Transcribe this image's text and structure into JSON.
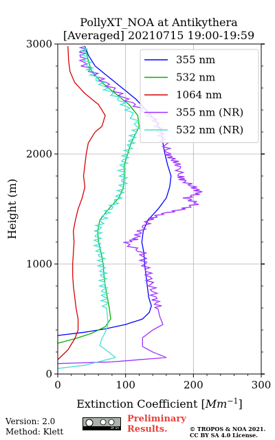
{
  "chart_data": {
    "type": "line",
    "title": "PollyXT_NOA at Antikythera",
    "subtitle": "[Averaged] 20210715 19:00-19:59",
    "xlabel": "Extinction Coefficient [Mm⁻¹]",
    "xlabel_main": "Extinction Coefficient [",
    "xlabel_unit": "Mm",
    "xlabel_exp": "−1",
    "xlabel_close": "]",
    "ylabel": "Height (m)",
    "xlim": [
      0,
      300
    ],
    "ylim": [
      0,
      3000
    ],
    "xticks": [
      "0",
      "100",
      "200",
      "300"
    ],
    "yticks": [
      "0",
      "1000",
      "2000",
      "3000"
    ],
    "grid": true,
    "legend_position": "top-right",
    "series": [
      {
        "name": "355 nm",
        "color": "#0000ff",
        "points": [
          [
            0,
            350
          ],
          [
            40,
            380
          ],
          [
            70,
            410
          ],
          [
            100,
            450
          ],
          [
            125,
            500
          ],
          [
            135,
            560
          ],
          [
            138,
            620
          ],
          [
            134,
            700
          ],
          [
            132,
            800
          ],
          [
            130,
            900
          ],
          [
            128,
            1000
          ],
          [
            127,
            1100
          ],
          [
            124,
            1200
          ],
          [
            126,
            1300
          ],
          [
            133,
            1400
          ],
          [
            148,
            1500
          ],
          [
            160,
            1600
          ],
          [
            165,
            1700
          ],
          [
            167,
            1800
          ],
          [
            162,
            1900
          ],
          [
            158,
            2000
          ],
          [
            155,
            2100
          ],
          [
            153,
            2200
          ],
          [
            145,
            2300
          ],
          [
            130,
            2400
          ],
          [
            115,
            2500
          ],
          [
            95,
            2600
          ],
          [
            75,
            2700
          ],
          [
            55,
            2800
          ],
          [
            45,
            2900
          ],
          [
            40,
            2980
          ]
        ]
      },
      {
        "name": "532 nm",
        "color": "#00b000",
        "points": [
          [
            0,
            280
          ],
          [
            25,
            320
          ],
          [
            50,
            370
          ],
          [
            70,
            430
          ],
          [
            78,
            500
          ],
          [
            76,
            600
          ],
          [
            73,
            700
          ],
          [
            70,
            800
          ],
          [
            68,
            900
          ],
          [
            67,
            1000
          ],
          [
            64,
            1100
          ],
          [
            60,
            1200
          ],
          [
            59,
            1300
          ],
          [
            62,
            1400
          ],
          [
            75,
            1500
          ],
          [
            90,
            1600
          ],
          [
            97,
            1700
          ],
          [
            98,
            1800
          ],
          [
            98,
            1900
          ],
          [
            103,
            2000
          ],
          [
            108,
            2100
          ],
          [
            112,
            2150
          ],
          [
            120,
            2250
          ],
          [
            118,
            2350
          ],
          [
            105,
            2450
          ],
          [
            85,
            2550
          ],
          [
            65,
            2650
          ],
          [
            50,
            2750
          ],
          [
            45,
            2850
          ],
          [
            40,
            2980
          ]
        ]
      },
      {
        "name": "1064 nm",
        "color": "#d40000",
        "points": [
          [
            0,
            130
          ],
          [
            15,
            220
          ],
          [
            25,
            320
          ],
          [
            30,
            400
          ],
          [
            30,
            500
          ],
          [
            27,
            600
          ],
          [
            25,
            700
          ],
          [
            23,
            800
          ],
          [
            22,
            900
          ],
          [
            22,
            1000
          ],
          [
            23,
            1100
          ],
          [
            24,
            1200
          ],
          [
            23,
            1300
          ],
          [
            26,
            1400
          ],
          [
            30,
            1500
          ],
          [
            36,
            1600
          ],
          [
            40,
            1700
          ],
          [
            38,
            1800
          ],
          [
            40,
            1900
          ],
          [
            42,
            2000
          ],
          [
            45,
            2100
          ],
          [
            55,
            2200
          ],
          [
            65,
            2250
          ],
          [
            70,
            2350
          ],
          [
            60,
            2450
          ],
          [
            40,
            2550
          ],
          [
            25,
            2650
          ],
          [
            18,
            2750
          ],
          [
            16,
            2850
          ],
          [
            15,
            2980
          ]
        ]
      },
      {
        "name": "355 nm (NR)",
        "color": "#9b30ff",
        "points": [
          [
            0,
            95
          ],
          [
            80,
            110
          ],
          [
            160,
            150
          ],
          [
            140,
            200
          ],
          [
            125,
            250
          ],
          [
            125,
            330
          ],
          [
            140,
            400
          ],
          [
            155,
            450
          ],
          [
            150,
            530
          ],
          [
            147,
            620
          ],
          [
            143,
            700
          ],
          [
            138,
            800
          ],
          [
            134,
            900
          ],
          [
            128,
            1000
          ],
          [
            125,
            1100
          ],
          [
            100,
            1190
          ],
          [
            115,
            1230
          ],
          [
            122,
            1300
          ],
          [
            135,
            1400
          ],
          [
            150,
            1450
          ],
          [
            185,
            1500
          ],
          [
            205,
            1550
          ],
          [
            190,
            1600
          ],
          [
            210,
            1650
          ],
          [
            200,
            1700
          ],
          [
            185,
            1760
          ],
          [
            180,
            1800
          ],
          [
            178,
            1900
          ],
          [
            170,
            1950
          ],
          [
            162,
            2000
          ],
          [
            158,
            2100
          ],
          [
            150,
            2200
          ],
          [
            145,
            2300
          ],
          [
            125,
            2400
          ],
          [
            100,
            2500
          ],
          [
            80,
            2600
          ],
          [
            60,
            2700
          ],
          [
            40,
            2800
          ],
          [
            35,
            2900
          ],
          [
            40,
            2980
          ]
        ]
      },
      {
        "name": "532 nm (NR)",
        "color": "#40e0d0",
        "points": [
          [
            0,
            50
          ],
          [
            40,
            80
          ],
          [
            85,
            150
          ],
          [
            75,
            200
          ],
          [
            62,
            260
          ],
          [
            65,
            320
          ],
          [
            70,
            380
          ],
          [
            74,
            450
          ],
          [
            73,
            550
          ],
          [
            70,
            650
          ],
          [
            68,
            750
          ],
          [
            67,
            850
          ],
          [
            66,
            950
          ],
          [
            64,
            1050
          ],
          [
            60,
            1150
          ],
          [
            58,
            1250
          ],
          [
            62,
            1350
          ],
          [
            70,
            1450
          ],
          [
            84,
            1550
          ],
          [
            93,
            1650
          ],
          [
            97,
            1750
          ],
          [
            95,
            1850
          ],
          [
            98,
            1950
          ],
          [
            105,
            2050
          ],
          [
            110,
            2150
          ],
          [
            118,
            2250
          ],
          [
            105,
            2400
          ],
          [
            90,
            2500
          ],
          [
            70,
            2600
          ],
          [
            55,
            2700
          ],
          [
            45,
            2800
          ],
          [
            40,
            2900
          ],
          [
            38,
            2980
          ]
        ]
      }
    ]
  },
  "footer": {
    "version": "Version: 2.0",
    "method": "Method: Klett",
    "badge_text": "BY SA",
    "prelim_line1": "Preliminary",
    "prelim_line2": "Results.",
    "copyright_line1": "© TROPOS & NOA 2021.",
    "copyright_line2": "CC BY SA 4.0 License."
  }
}
